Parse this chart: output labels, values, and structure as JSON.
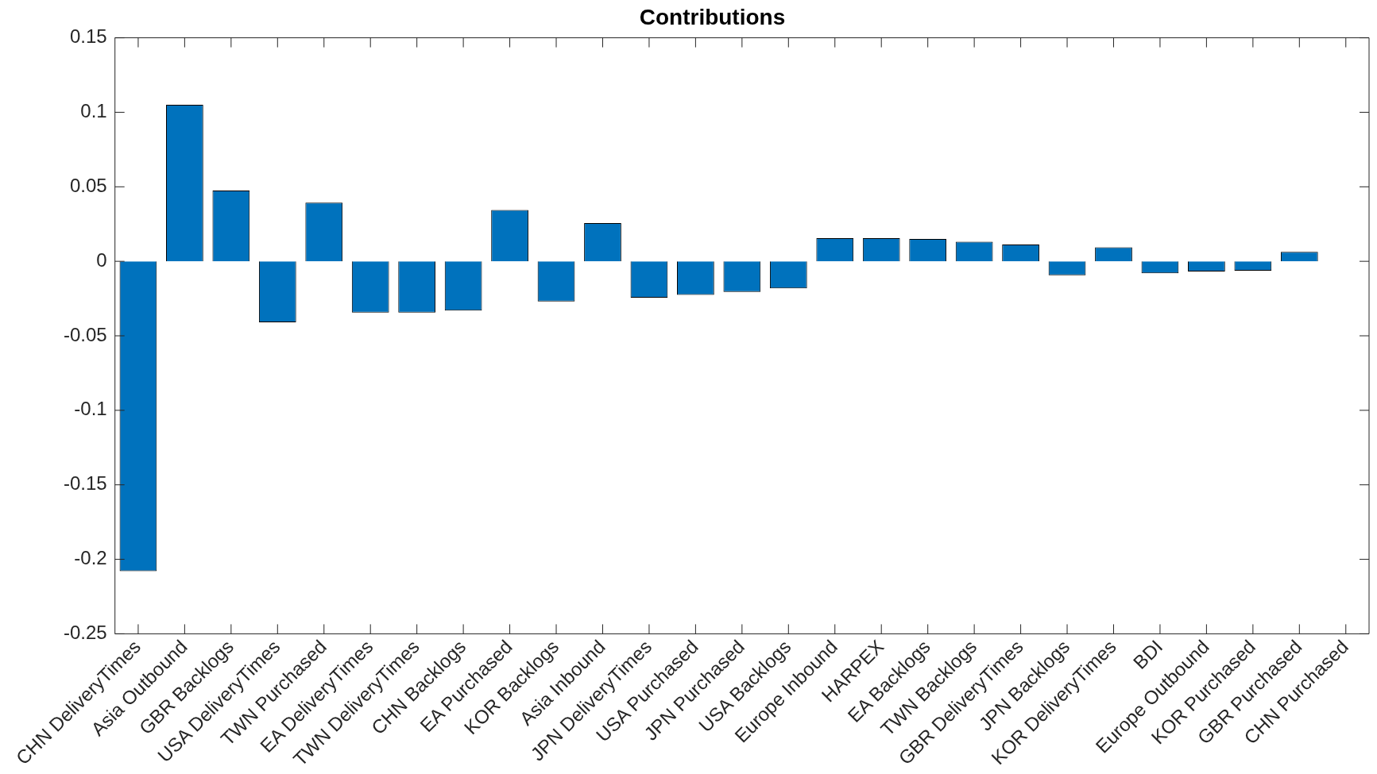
{
  "chart_data": {
    "type": "bar",
    "title": "Contributions",
    "categories": [
      "CHN DeliveryTimes",
      "Asia Outbound",
      "GBR Backlogs",
      "USA DeliveryTimes",
      "TWN Purchased",
      "EA DeliveryTimes",
      "TWN DeliveryTimes",
      "CHN Backlogs",
      "EA Purchased",
      "KOR Backlogs",
      "Asia Inbound",
      "JPN DeliveryTimes",
      "USA Purchased",
      "JPN Purchased",
      "USA Backlogs",
      "Europe Inbound",
      "HARPEX",
      "EA Backlogs",
      "TWN Backlogs",
      "GBR DeliveryTimes",
      "JPN Backlogs",
      "KOR DeliveryTimes",
      "BDI",
      "Europe Outbound",
      "KOR Purchased",
      "GBR Purchased",
      "CHN Purchased"
    ],
    "values": [
      -0.208,
      0.105,
      0.0475,
      -0.041,
      0.0394,
      -0.0344,
      -0.0344,
      -0.0331,
      0.0344,
      -0.0269,
      0.0256,
      -0.0244,
      -0.0225,
      -0.0206,
      -0.0181,
      0.0156,
      0.0156,
      0.015,
      0.0131,
      0.0113,
      -0.0094,
      0.0094,
      -0.0081,
      -0.0069,
      -0.0063,
      0.0063,
      0
    ],
    "color": "#0072bd",
    "ylim": [
      -0.25,
      0.15
    ],
    "yticks": [
      -0.25,
      -0.2,
      -0.15,
      -0.1,
      -0.05,
      0,
      0.05,
      0.1,
      0.15
    ],
    "grid": false
  }
}
